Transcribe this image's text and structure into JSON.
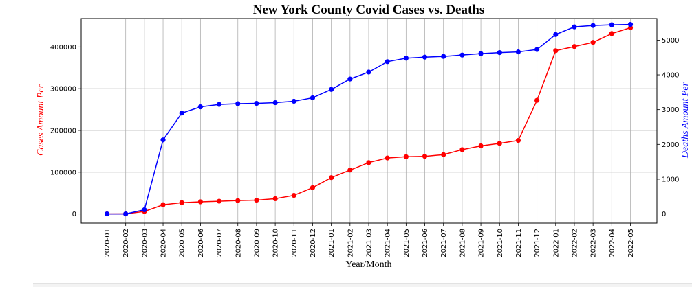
{
  "chart_data": {
    "type": "line",
    "title": "New York County Covid Cases vs. Deaths",
    "xlabel": "Year/Month",
    "ylabel_left": "Cases Amount Per",
    "ylabel_right": "Deaths Amount Per",
    "grid": true,
    "categories": [
      "2020-01",
      "2020-02",
      "2020-03",
      "2020-04",
      "2020-05",
      "2020-06",
      "2020-07",
      "2020-08",
      "2020-09",
      "2020-10",
      "2020-11",
      "2020-12",
      "2021-01",
      "2021-02",
      "2021-03",
      "2021-04",
      "2021-05",
      "2021-06",
      "2021-07",
      "2021-08",
      "2021-09",
      "2021-10",
      "2021-11",
      "2021-12",
      "2022-01",
      "2022-02",
      "2022-03",
      "2022-04",
      "2022-05"
    ],
    "left_axis": {
      "ylim": [
        -22000,
        468000
      ],
      "ticks": [
        0,
        100000,
        200000,
        300000,
        400000
      ]
    },
    "right_axis": {
      "ylim": [
        -265,
        5620
      ],
      "ticks": [
        0,
        1000,
        2000,
        3000,
        4000,
        5000
      ]
    },
    "series": [
      {
        "axis": "left",
        "color": "#ff0000",
        "values": [
          0,
          100,
          6000,
          22000,
          27000,
          29000,
          30500,
          32000,
          33000,
          36500,
          44500,
          63000,
          87000,
          105000,
          123000,
          134000,
          137000,
          138000,
          142000,
          154000,
          163000,
          169000,
          176000,
          272000,
          391000,
          401000,
          411000,
          432000,
          446000
        ]
      },
      {
        "axis": "right",
        "color": "#0000ff",
        "values": [
          0,
          0,
          120,
          2130,
          2900,
          3080,
          3150,
          3170,
          3180,
          3200,
          3240,
          3340,
          3580,
          3880,
          4080,
          4380,
          4480,
          4510,
          4530,
          4570,
          4610,
          4640,
          4660,
          4730,
          5160,
          5380,
          5420,
          5440,
          5450
        ]
      }
    ]
  }
}
